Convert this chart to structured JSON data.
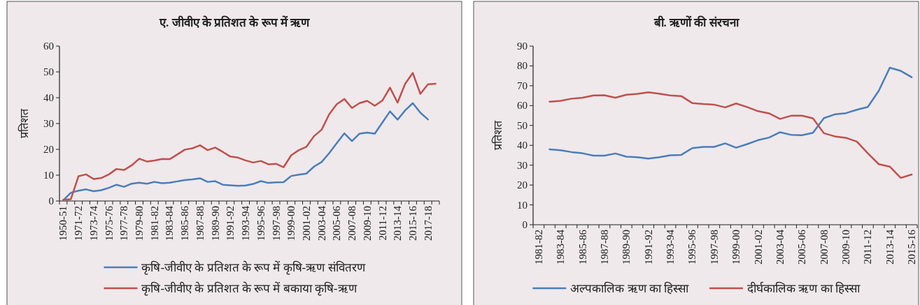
{
  "chart_data": [
    {
      "type": "line",
      "title": "ए. जीवीए के प्रतिशत के रूप में ऋण",
      "ylabel": "प्रतिशत",
      "legend": "bottom",
      "ylim": [
        0,
        60
      ],
      "yticks": [
        0,
        10,
        20,
        30,
        40,
        50,
        60
      ],
      "categories": [
        "1950-51",
        null,
        "1971-72",
        null,
        "1973-74",
        null,
        "1975-76",
        null,
        "1977-78",
        null,
        "1979-80",
        null,
        "1981-82",
        null,
        "1983-84",
        null,
        "1985-86",
        null,
        "1987-88",
        null,
        "1989-90",
        null,
        "1991-92",
        null,
        "1993-94",
        null,
        "1995-96",
        null,
        "1997-98",
        null,
        "1999-00",
        null,
        "2001-02",
        null,
        "2003-04",
        null,
        "2005-06",
        null,
        "2007-08",
        null,
        "2009-10",
        null,
        "2011-12",
        null,
        "2013-14",
        null,
        "2015-16",
        null,
        "2017-18",
        null
      ],
      "series": [
        {
          "name": "कृषि-जीवीए के प्रतिशत के रूप में कृषि-ऋण संवितरण",
          "color": "#4a7ebb",
          "values": [
            0.3,
            3.2,
            4.0,
            4.5,
            3.8,
            4.2,
            5.1,
            6.3,
            5.5,
            6.7,
            7.1,
            6.7,
            7.4,
            6.9,
            7.1,
            7.6,
            8.1,
            8.4,
            8.8,
            7.4,
            7.7,
            6.3,
            6.1,
            5.9,
            6.0,
            6.6,
            7.7,
            7.0,
            7.2,
            7.3,
            9.7,
            10.2,
            10.6,
            13.3,
            15.1,
            18.5,
            22.4,
            26.2,
            23.2,
            26.1,
            26.5,
            26.1,
            30.4,
            34.7,
            31.5,
            35.1,
            37.9,
            34.2,
            31.6,
            null
          ]
        },
        {
          "name": "कृषि-जीवीए के प्रतिशत के रूप में बकाया कृषि-ऋण",
          "color": "#c0504d",
          "values": [
            0.5,
            0.7,
            9.6,
            10.3,
            8.5,
            8.9,
            10.3,
            12.4,
            12.0,
            13.8,
            16.4,
            15.3,
            15.7,
            16.3,
            16.2,
            18.0,
            19.9,
            20.4,
            21.6,
            19.7,
            20.7,
            19.0,
            17.2,
            16.8,
            15.7,
            14.9,
            15.5,
            14.2,
            14.4,
            13.1,
            17.7,
            19.7,
            21.0,
            25.1,
            27.6,
            33.6,
            37.5,
            39.5,
            36.0,
            37.9,
            38.8,
            36.9,
            38.9,
            43.9,
            38.1,
            45.4,
            49.6,
            41.5,
            45.2,
            45.4
          ]
        }
      ]
    },
    {
      "type": "line",
      "title": "बी. ऋणों की संरचना",
      "ylabel": "प्रतिशत",
      "legend": "bottom",
      "ylim": [
        0,
        90
      ],
      "yticks": [
        0,
        10,
        20,
        30,
        40,
        50,
        60,
        70,
        80,
        90
      ],
      "categories": [
        "1981-82",
        null,
        "1983-84",
        null,
        "1985-86",
        null,
        "1987-88",
        null,
        "1989-90",
        null,
        "1991-92",
        null,
        "1993-94",
        null,
        "1995-96",
        null,
        "1997-98",
        null,
        "1999-00",
        null,
        "2001-02",
        null,
        "2003-04",
        null,
        "2005-06",
        null,
        "2007-08",
        null,
        "2009-10",
        null,
        "2011-12",
        null,
        "2013-14",
        null,
        "2015-16"
      ],
      "series": [
        {
          "name": "अल्पकालिक ऋण का हिस्सा",
          "color": "#4a7ebb",
          "values": [
            null,
            38.0,
            37.5,
            36.6,
            36.0,
            34.8,
            34.8,
            35.9,
            34.3,
            34.0,
            33.3,
            34.0,
            35.0,
            35.2,
            38.6,
            39.2,
            39.2,
            41.0,
            38.8,
            40.6,
            42.6,
            43.9,
            46.6,
            45.3,
            45.1,
            46.3,
            53.7,
            55.6,
            56.2,
            57.9,
            59.3,
            67.5,
            79.1,
            77.5,
            74.3
          ]
        },
        {
          "name": "दीर्घकालिक ऋण का हिस्सा",
          "color": "#c0504d",
          "values": [
            null,
            62.0,
            62.4,
            63.5,
            64.0,
            65.1,
            65.2,
            64.0,
            65.5,
            65.9,
            66.7,
            66.0,
            65.1,
            64.8,
            61.3,
            60.8,
            60.5,
            59.1,
            61.1,
            59.3,
            57.2,
            56.1,
            53.3,
            54.9,
            54.9,
            53.6,
            46.1,
            44.5,
            43.8,
            41.9,
            36.0,
            30.5,
            29.3,
            23.6,
            25.3
          ]
        }
      ]
    }
  ]
}
